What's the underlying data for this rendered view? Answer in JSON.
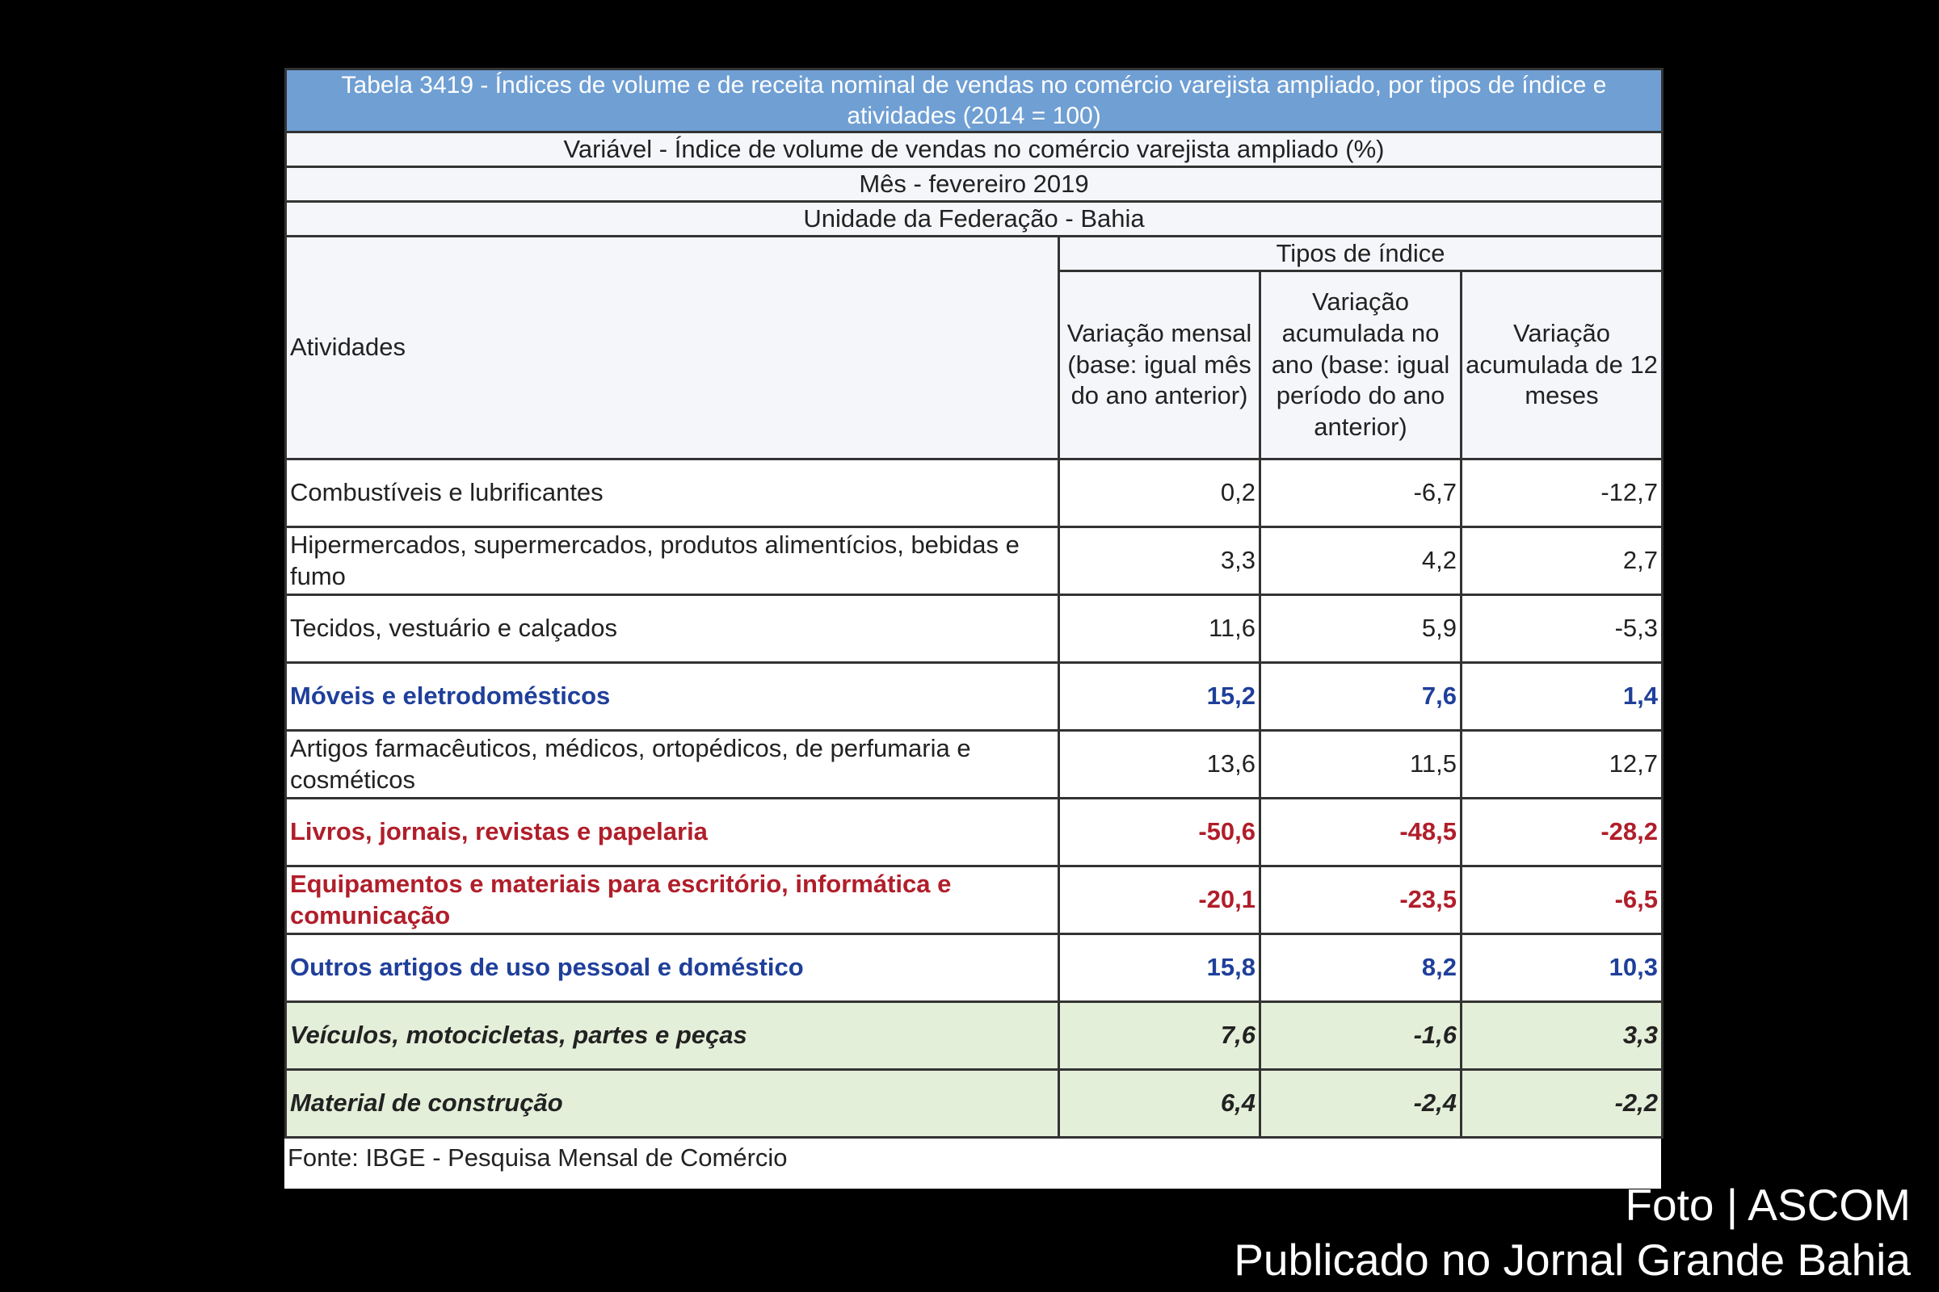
{
  "table": {
    "title": "Tabela 3419 - Índices de volume e de receita nominal de vendas no comércio varejista ampliado, por tipos de índice e atividades (2014 = 100)",
    "variable": "Variável - Índice de volume de vendas no comércio varejista ampliado (%)",
    "month": "Mês - fevereiro 2019",
    "unit": "Unidade da Federação - Bahia",
    "header": {
      "activities": "Atividades",
      "group": "Tipos de índice",
      "columns": [
        "Variação mensal (base: igual mês do ano anterior)",
        "Variação acumulada no ano (base: igual período do ano anterior)",
        "Variação acumulada de 12 meses"
      ]
    },
    "rows": [
      [
        "Combustíveis e lubrificantes",
        "0,2",
        "-6,7",
        "-12,7"
      ],
      [
        "Hipermercados, supermercados, produtos alimentícios, bebidas e fumo",
        "3,3",
        "4,2",
        "2,7"
      ],
      [
        "Tecidos, vestuário e calçados",
        "11,6",
        "5,9",
        "-5,3"
      ],
      [
        "Móveis e eletrodomésticos",
        "15,2",
        "7,6",
        "1,4"
      ],
      [
        "Artigos farmacêuticos, médicos, ortopédicos, de perfumaria e cosméticos",
        "13,6",
        "11,5",
        "12,7"
      ],
      [
        "Livros, jornais, revistas e papelaria",
        "-50,6",
        "-48,5",
        "-28,2"
      ],
      [
        "Equipamentos e materiais para escritório, informática e comunicação",
        "-20,1",
        "-23,5",
        "-6,5"
      ],
      [
        "Outros artigos de uso pessoal e doméstico",
        "15,8",
        "8,2",
        "10,3"
      ],
      [
        "Veículos, motocicletas, partes e peças",
        "7,6",
        "-1,6",
        "3,3"
      ],
      [
        "Material de construção",
        "6,4",
        "-2,4",
        "-2,2"
      ]
    ],
    "source": "Fonte: IBGE - Pesquisa Mensal de Comércio"
  },
  "credits": {
    "photo": "Foto | ASCOM",
    "published": "Publicado no Jornal Grande Bahia"
  }
}
